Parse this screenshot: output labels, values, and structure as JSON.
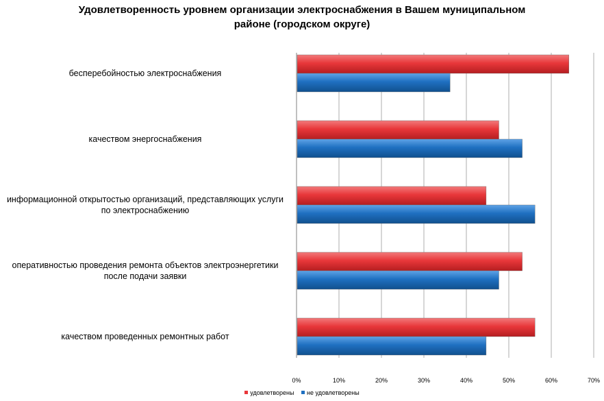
{
  "chart_data": {
    "type": "bar",
    "orientation": "horizontal",
    "title_lines": [
      "Удовлетворенность уровнем организации электроснабжения в Вашем муниципальном",
      "районе (городском округе)"
    ],
    "categories": [
      [
        "бесперебойностью  электроснабжения"
      ],
      [
        "качеством энергоснабжения"
      ],
      [
        "информационной открытостью организаций, представляющих услуги",
        "по электроснабжению"
      ],
      [
        "оперативностью проведения ремонта  объектов электроэнергетики",
        "после подачи заявки"
      ],
      [
        "качеством проведенных ремонтных  работ"
      ]
    ],
    "series": [
      {
        "name": "удовлетворены",
        "color": "#e8373a",
        "values": [
          64,
          47.5,
          44.5,
          53,
          56
        ]
      },
      {
        "name": "не удовлетворены",
        "color": "#1f70c1",
        "values": [
          36,
          53,
          56,
          47.5,
          44.5
        ]
      }
    ],
    "xlim": [
      0,
      70
    ],
    "x_ticks": [
      "0%",
      "10%",
      "20%",
      "30%",
      "40%",
      "50%",
      "60%",
      "70%"
    ],
    "grid": true,
    "legend_position": "bottom"
  }
}
